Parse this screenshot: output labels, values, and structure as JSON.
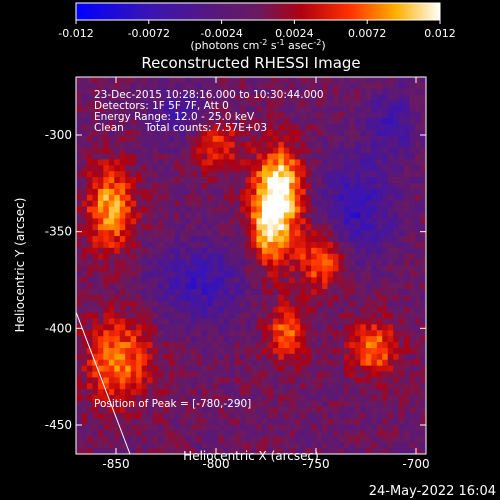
{
  "title": "Reconstructed RHESSI Image",
  "colorbar": {
    "ticks": [
      "-0.012",
      "-0.0072",
      "-0.0024",
      "0.0024",
      "0.0072",
      "0.012"
    ],
    "label_main": "(photons cm",
    "label_sup1": "-2",
    "label_mid": " s",
    "label_sup2": "-1",
    "label_end": " asec",
    "label_sup3": "-2",
    "label_close": ")",
    "range": [
      -0.012,
      0.012
    ]
  },
  "info": {
    "line1": "23-Dec-2015 10:28:16.000 to 10:30:44.000",
    "line2": "Detectors: 1F 5F 7F, Att 0",
    "line3": "Energy Range: 12.0 - 25.0 keV",
    "line4_a": "Clean",
    "line4_b": "Total counts: 7.57E+03"
  },
  "peak_note": "Position of Peak = [-780,-290]",
  "footer_date": "24-May-2022 16:04",
  "chart_data": {
    "type": "heatmap",
    "title": "Reconstructed RHESSI Image",
    "xlabel": "Heliocentric X (arcsec)",
    "ylabel": "Heliocentric Y (arcsec)",
    "x_ticks": [
      "-850",
      "-800",
      "-750",
      "-700"
    ],
    "y_ticks": [
      "-300",
      "-350",
      "-400",
      "-450"
    ],
    "x_tick_values": [
      -850,
      -800,
      -750,
      -700
    ],
    "y_tick_values": [
      -300,
      -350,
      -400,
      -450
    ],
    "xlim": [
      -870,
      -695
    ],
    "ylim": [
      -465,
      -270
    ],
    "peak": {
      "x": -780,
      "y": -290
    },
    "zlim": [
      -0.012,
      0.012
    ],
    "grid": false
  }
}
